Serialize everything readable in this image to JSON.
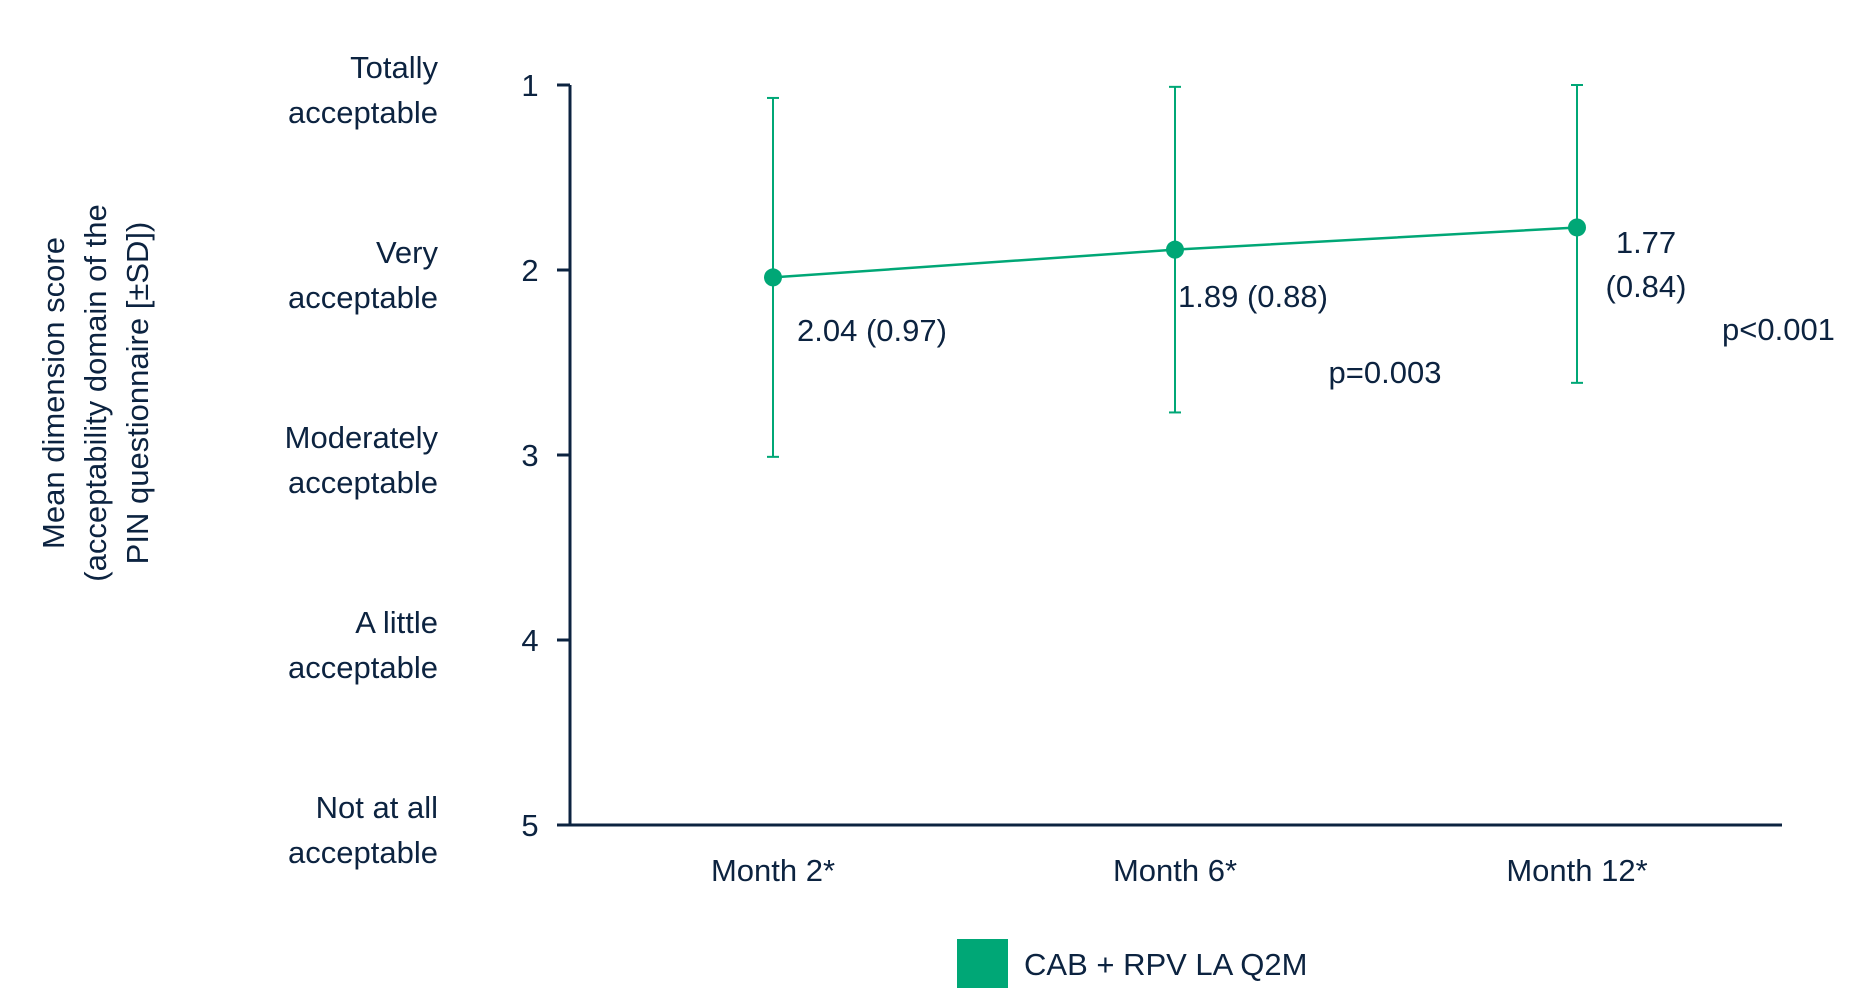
{
  "chart_data": {
    "type": "line",
    "ylabel_lines": [
      "Mean dimension score",
      "(acceptability domain of the",
      "PIN questionnaire [±SD])"
    ],
    "categories": [
      "Month 2*",
      "Month 6*",
      "Month 12*"
    ],
    "ylim": [
      1,
      5
    ],
    "y_reversed": true,
    "y_ticks": [
      1,
      2,
      3,
      4,
      5
    ],
    "y_category_labels": [
      {
        "line1": "Totally",
        "line2": "acceptable"
      },
      {
        "line1": "Very",
        "line2": "acceptable"
      },
      {
        "line1": "Moderately",
        "line2": "acceptable"
      },
      {
        "line1": "A little",
        "line2": "acceptable"
      },
      {
        "line1": "Not at all",
        "line2": "acceptable"
      }
    ],
    "series": [
      {
        "name": "CAB + RPV LA Q2M",
        "color": "#00a776",
        "values": [
          2.04,
          1.89,
          1.77
        ],
        "sd": [
          0.97,
          0.88,
          0.84
        ],
        "data_labels": [
          [
            "2.04 (0.97)"
          ],
          [
            "1.89 (0.88)"
          ],
          [
            "1.77",
            "(0.84)"
          ]
        ]
      }
    ],
    "annotations": [
      "p=0.003",
      "p<0.001"
    ],
    "legend": {
      "position": "bottom-center",
      "label": "CAB + RPV LA Q2M"
    },
    "grid": false
  },
  "colors": {
    "axis": "#0c2340",
    "text": "#0c2340",
    "series": "#00a776",
    "ylabel": "#0c2340"
  }
}
